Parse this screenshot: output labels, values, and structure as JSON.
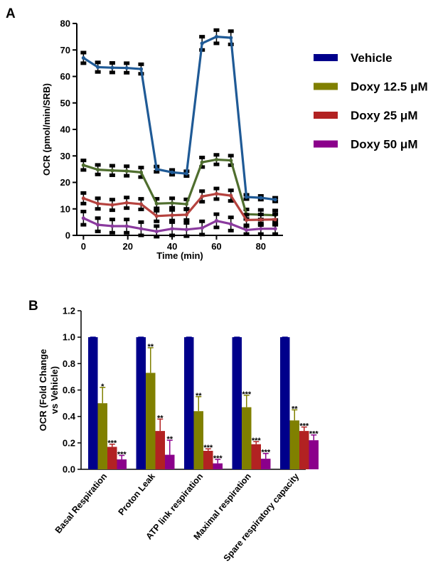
{
  "chart_data": [
    {
      "panel": "A",
      "type": "line",
      "xlabel": "Time (min)",
      "ylabel": "OCR (pmol/min/SRB)",
      "xlim": [
        -3,
        90
      ],
      "ylim": [
        0,
        80
      ],
      "xticks": [
        0,
        20,
        40,
        60,
        80
      ],
      "yticks": [
        0,
        10,
        20,
        30,
        40,
        50,
        60,
        70,
        80
      ],
      "x": [
        0,
        6.5,
        13,
        19.5,
        26,
        33,
        40,
        46.5,
        53.5,
        60,
        66.5,
        73.5,
        80,
        86.5
      ],
      "legend_position": "right",
      "series": [
        {
          "name": "Vehicle",
          "color": "#1f5a96",
          "legend_color": "#00008b",
          "values": [
            67,
            63.5,
            63.3,
            63.2,
            62.8,
            25,
            23.8,
            23.3,
            72.5,
            75,
            74.6,
            14.5,
            14.2,
            13.5
          ],
          "errors": [
            2,
            1.8,
            1.8,
            1.8,
            1.8,
            1,
            0.9,
            0.9,
            2.5,
            2.5,
            2.5,
            0.8,
            0.7,
            0.7
          ]
        },
        {
          "name": "Doxy 12.5 μM",
          "color": "#4f6e2e",
          "legend_color": "#808000",
          "values": [
            26.5,
            24.8,
            24.5,
            24.3,
            23.8,
            12,
            12.2,
            11.8,
            27.6,
            28.6,
            28.3,
            8,
            7.8,
            7.6
          ],
          "errors": [
            1.8,
            1.8,
            1.8,
            1.8,
            1.8,
            1.8,
            1.8,
            1.8,
            1.8,
            1.8,
            1.8,
            1.8,
            1.8,
            1.8
          ]
        },
        {
          "name": "Doxy 25 μM",
          "color": "#b5423e",
          "legend_color": "#b22222",
          "values": [
            14,
            12,
            11.5,
            12.3,
            11.8,
            7.3,
            7.6,
            7.8,
            14.7,
            15.7,
            15,
            5.8,
            5.9,
            6
          ],
          "errors": [
            2,
            2,
            2,
            2,
            2,
            2,
            2,
            2,
            2,
            2,
            2,
            2,
            2,
            2
          ]
        },
        {
          "name": "Doxy 50 μM",
          "color": "#8a3a9e",
          "legend_color": "#8b008b",
          "values": [
            6.5,
            4,
            3.5,
            3.5,
            2.5,
            1.5,
            2.5,
            2.2,
            2.8,
            5.5,
            4.3,
            2,
            2.5,
            2.5
          ],
          "errors": [
            2.5,
            2.5,
            2.5,
            2.5,
            2.5,
            2,
            2.5,
            2.5,
            2.5,
            2.5,
            2.5,
            1.5,
            2,
            2
          ]
        }
      ]
    },
    {
      "panel": "B",
      "type": "bar",
      "ylabel_lines": [
        "OCR (Fold Change",
        "vs Vehicle)"
      ],
      "ylim": [
        0,
        1.2
      ],
      "yticks": [
        "0.0",
        "0.2",
        "0.4",
        "0.6",
        "0.8",
        "1.0",
        "1.2"
      ],
      "categories": [
        "Basal Respiration",
        "Proton Leak",
        "ATP link respiration",
        "Maximal respiration",
        "Spare respiratory capacity"
      ],
      "series": [
        {
          "name": "Vehicle",
          "color": "#00008b",
          "values": [
            1.0,
            1.0,
            1.0,
            1.0,
            1.0
          ],
          "errors": [
            0.0,
            0.0,
            0.0,
            0.0,
            0.0
          ],
          "sig": [
            "",
            "",
            "",
            "",
            ""
          ]
        },
        {
          "name": "Doxy 12.5 μM",
          "color": "#808000",
          "values": [
            0.5,
            0.73,
            0.44,
            0.47,
            0.37
          ],
          "errors": [
            0.12,
            0.19,
            0.11,
            0.09,
            0.08
          ],
          "sig": [
            "*",
            "**",
            "**",
            "***",
            "**"
          ]
        },
        {
          "name": "Doxy 25 μM",
          "color": "#b22222",
          "values": [
            0.17,
            0.29,
            0.14,
            0.19,
            0.29
          ],
          "errors": [
            0.02,
            0.09,
            0.015,
            0.02,
            0.03
          ],
          "sig": [
            "***",
            "**",
            "***",
            "***",
            "***"
          ]
        },
        {
          "name": "Doxy 50 μM",
          "color": "#8b008b",
          "values": [
            0.075,
            0.11,
            0.045,
            0.08,
            0.22
          ],
          "errors": [
            0.03,
            0.11,
            0.03,
            0.04,
            0.04
          ],
          "sig": [
            "***",
            "**",
            "***",
            "***",
            "***"
          ]
        }
      ]
    }
  ]
}
